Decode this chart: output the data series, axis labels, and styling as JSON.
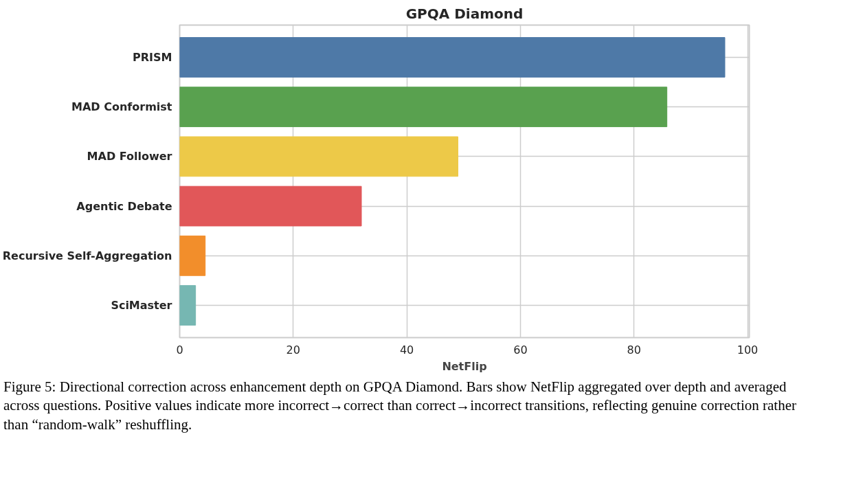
{
  "chart_data": {
    "type": "bar",
    "orientation": "horizontal",
    "title": "GPQA Diamond",
    "xlabel": "NetFlip",
    "categories": [
      "PRISM",
      "MAD Conformist",
      "MAD Follower",
      "Agentic Debate",
      "Recursive Self-Aggregation",
      "SciMaster"
    ],
    "values": [
      96,
      85.8,
      49,
      32,
      4.5,
      2.8
    ],
    "colors": [
      "#4e79a7",
      "#59a14f",
      "#edc948",
      "#e15759",
      "#f28e2b",
      "#76b7b2"
    ],
    "xlim": [
      0,
      100.3
    ],
    "xticks": [
      0,
      20,
      40,
      60,
      80,
      100
    ],
    "grid": true,
    "annotations": [
      "Figure 5: Directional correction across enhancement depth on GPQA Diamond. Bars show NetFlip aggregated over depth and averaged across questions. Positive values indicate more incorrect→correct than correct→incorrect transitions, reflecting genuine correction rather than “random-walk” reshuffling."
    ]
  }
}
